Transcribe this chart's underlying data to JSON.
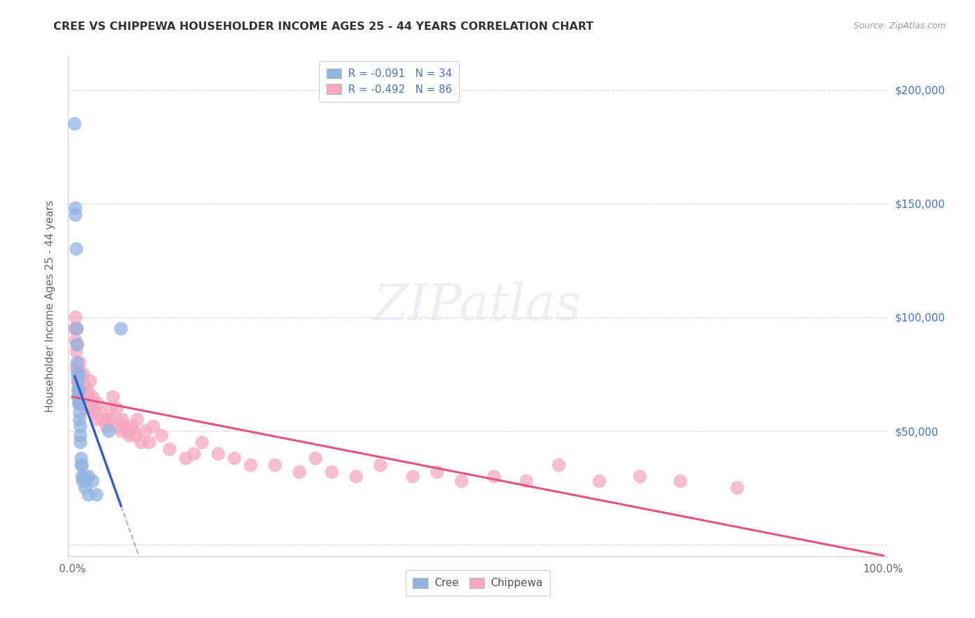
{
  "title": "CREE VS CHIPPEWA HOUSEHOLDER INCOME AGES 25 - 44 YEARS CORRELATION CHART",
  "source": "Source: ZipAtlas.com",
  "ylabel": "Householder Income Ages 25 - 44 years",
  "yticks": [
    0,
    50000,
    100000,
    150000,
    200000
  ],
  "ytick_labels": [
    "",
    "$50,000",
    "$100,000",
    "$150,000",
    "$200,000"
  ],
  "xlim": [
    -0.005,
    1.005
  ],
  "ylim": [
    -5000,
    215000
  ],
  "cree_color": "#92b4e3",
  "chippewa_color": "#f5a8c0",
  "cree_line_color": "#3a5bbf",
  "chippewa_line_color": "#e8527a",
  "grid_color": "#d8d8d8",
  "cree_scatter_x": [
    0.003,
    0.004,
    0.004,
    0.005,
    0.005,
    0.006,
    0.006,
    0.006,
    0.007,
    0.007,
    0.007,
    0.008,
    0.008,
    0.008,
    0.009,
    0.009,
    0.009,
    0.01,
    0.01,
    0.01,
    0.011,
    0.011,
    0.012,
    0.012,
    0.013,
    0.015,
    0.016,
    0.017,
    0.02,
    0.02,
    0.025,
    0.03,
    0.045,
    0.06
  ],
  "cree_scatter_y": [
    185000,
    148000,
    145000,
    130000,
    95000,
    88000,
    80000,
    75000,
    72000,
    68000,
    65000,
    75000,
    68000,
    62000,
    62000,
    58000,
    55000,
    52000,
    48000,
    45000,
    38000,
    35000,
    35000,
    30000,
    28000,
    30000,
    25000,
    28000,
    30000,
    22000,
    28000,
    22000,
    50000,
    95000
  ],
  "chippewa_scatter_x": [
    0.003,
    0.004,
    0.004,
    0.005,
    0.005,
    0.006,
    0.006,
    0.007,
    0.007,
    0.008,
    0.008,
    0.008,
    0.009,
    0.009,
    0.01,
    0.01,
    0.011,
    0.011,
    0.012,
    0.012,
    0.013,
    0.014,
    0.014,
    0.015,
    0.016,
    0.016,
    0.017,
    0.018,
    0.019,
    0.02,
    0.021,
    0.022,
    0.023,
    0.025,
    0.026,
    0.028,
    0.03,
    0.032,
    0.035,
    0.038,
    0.04,
    0.042,
    0.045,
    0.048,
    0.05,
    0.055,
    0.055,
    0.058,
    0.06,
    0.062,
    0.065,
    0.068,
    0.07,
    0.073,
    0.075,
    0.078,
    0.08,
    0.085,
    0.09,
    0.095,
    0.1,
    0.11,
    0.12,
    0.14,
    0.15,
    0.16,
    0.18,
    0.2,
    0.22,
    0.25,
    0.28,
    0.3,
    0.32,
    0.35,
    0.38,
    0.42,
    0.45,
    0.48,
    0.52,
    0.56,
    0.6,
    0.65,
    0.7,
    0.75,
    0.82
  ],
  "chippewa_scatter_y": [
    95000,
    100000,
    90000,
    85000,
    78000,
    95000,
    88000,
    78000,
    72000,
    75000,
    70000,
    65000,
    80000,
    72000,
    75000,
    68000,
    72000,
    65000,
    70000,
    62000,
    68000,
    75000,
    65000,
    70000,
    68000,
    60000,
    65000,
    62000,
    68000,
    65000,
    60000,
    72000,
    62000,
    65000,
    60000,
    58000,
    55000,
    62000,
    58000,
    55000,
    55000,
    52000,
    55000,
    60000,
    65000,
    60000,
    55000,
    52000,
    50000,
    55000,
    52000,
    50000,
    48000,
    52000,
    50000,
    48000,
    55000,
    45000,
    50000,
    45000,
    52000,
    48000,
    42000,
    38000,
    40000,
    45000,
    40000,
    38000,
    35000,
    35000,
    32000,
    38000,
    32000,
    30000,
    35000,
    30000,
    32000,
    28000,
    30000,
    28000,
    35000,
    28000,
    30000,
    28000,
    25000
  ]
}
